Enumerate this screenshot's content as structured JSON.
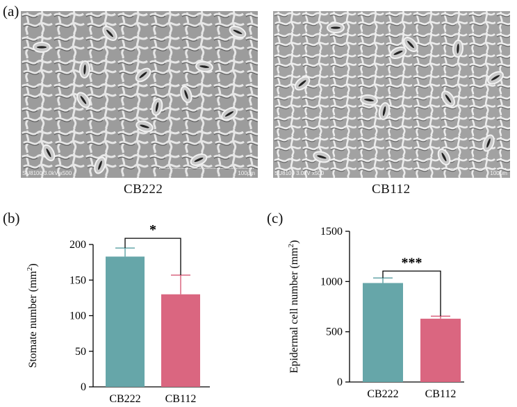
{
  "panels": {
    "a": {
      "label": "(a)"
    },
    "b": {
      "label": "(b)"
    },
    "c": {
      "label": "(c)"
    }
  },
  "micrographs": [
    {
      "caption": "CB222",
      "info": "SU8100 3.0kV x500",
      "scale": "100μm"
    },
    {
      "caption": "CB112",
      "info": "SU8100 3.0kV x500",
      "scale": "100μm"
    }
  ],
  "colors": {
    "cb222": "#66a6a9",
    "cb112": "#da6680",
    "error_cb222": "#66a6a9",
    "error_cb112": "#da6680"
  },
  "chart_data": [
    {
      "type": "bar",
      "categories": [
        "CB222",
        "CB112"
      ],
      "values": [
        183,
        130
      ],
      "errors": [
        12,
        27
      ],
      "ylabel": "Stomate number (mm",
      "ylabel_sup": "2",
      "ylabel_end": ")",
      "ylim": [
        0,
        200
      ],
      "yticks": [
        0,
        50,
        100,
        150,
        200
      ],
      "significance": "*",
      "grid": false
    },
    {
      "type": "bar",
      "categories": [
        "CB222",
        "CB112"
      ],
      "values": [
        985,
        630
      ],
      "errors": [
        50,
        25
      ],
      "ylabel": "Epidermal cell number (mm",
      "ylabel_sup": "2",
      "ylabel_end": ")",
      "ylim": [
        0,
        1500
      ],
      "yticks": [
        0,
        500,
        1000,
        1500
      ],
      "significance": "***",
      "grid": false
    }
  ]
}
